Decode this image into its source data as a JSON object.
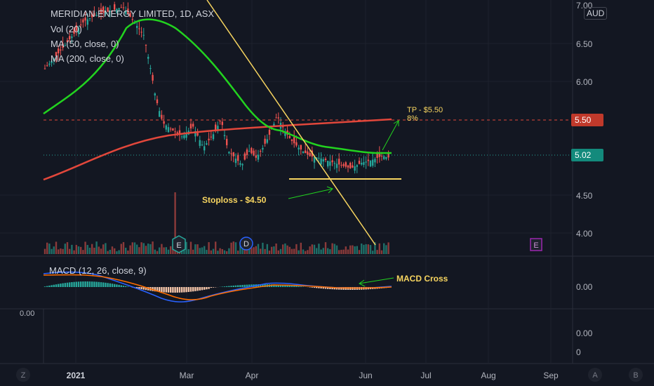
{
  "header": {
    "symbol_line": "MERIDIAN ENERGY LIMITED, 1D, ASX",
    "currency_button": "AUD"
  },
  "legends": {
    "vol": "Vol (20)",
    "ma50": "MA (50, close, 0)",
    "ma200": "MA (200, close, 0)",
    "macd": "MACD (12, 26, close, 9)"
  },
  "price_axis": {
    "ticks": [
      "7.00",
      "6.50",
      "6.00",
      "5.50",
      "5.02",
      "4.50",
      "4.00"
    ],
    "tp_badge": "5.50",
    "last_badge": "5.02"
  },
  "macd_axis": {
    "ticks": [
      "0.00"
    ]
  },
  "extra_pane": {
    "left_label": "0.00",
    "ticks": [
      "0.00",
      "0"
    ]
  },
  "time_axis": {
    "labels": [
      "2021",
      "Mar",
      "Apr",
      "Jun",
      "Jul",
      "Aug",
      "Sep"
    ]
  },
  "annotations": {
    "tp": "TP - $5.50",
    "tp_pct": "8%",
    "stoploss": "Stoploss - $4.50",
    "macd_cross": "MACD Cross"
  },
  "events": {
    "earnings": "E",
    "dividend": "D"
  },
  "bottom_buttons": {
    "left": "Z",
    "auto": "A",
    "log": "B"
  },
  "colors": {
    "background": "#131722",
    "up": "#26a69a",
    "down": "#ef5350",
    "ma50": "#22d31f",
    "ma200": "#e2473b",
    "trendline": "#f7d560",
    "tp_badge": "#c0392b",
    "last_badge": "#138a7c"
  }
}
